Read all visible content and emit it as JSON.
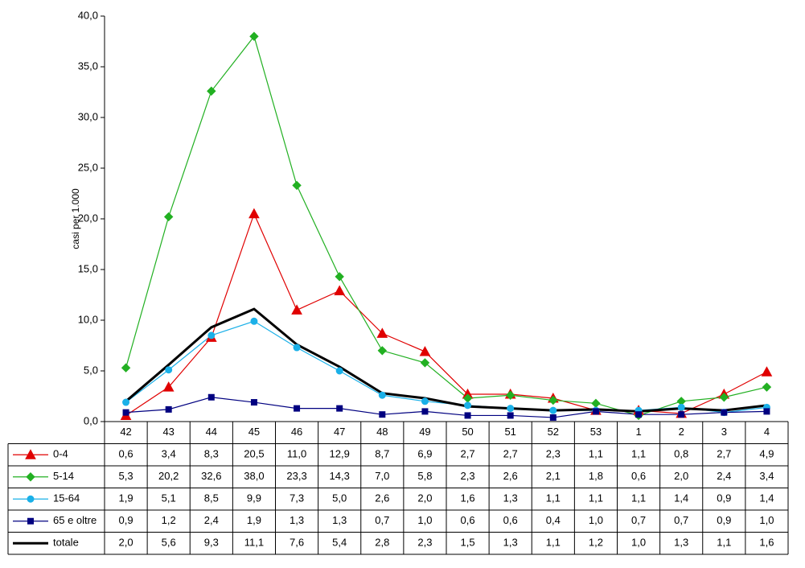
{
  "chart_data": {
    "type": "line",
    "y_label": "casi per 1.000",
    "categories": [
      "42",
      "43",
      "44",
      "45",
      "46",
      "47",
      "48",
      "49",
      "50",
      "51",
      "52",
      "53",
      "1",
      "2",
      "3",
      "4"
    ],
    "ylim": [
      0,
      40
    ],
    "yticks": [
      {
        "value": 0,
        "label": "0,0"
      },
      {
        "value": 5,
        "label": "5,0"
      },
      {
        "value": 10,
        "label": "10,0"
      },
      {
        "value": 15,
        "label": "15,0"
      },
      {
        "value": 20,
        "label": "20,0"
      },
      {
        "value": 25,
        "label": "25,0"
      },
      {
        "value": 30,
        "label": "30,0"
      },
      {
        "value": 35,
        "label": "35,0"
      },
      {
        "value": 40,
        "label": "40,0"
      }
    ],
    "series": [
      {
        "name": "0-4",
        "color": "#e00000",
        "marker": "triangle",
        "values": [
          0.6,
          3.4,
          8.3,
          20.5,
          11.0,
          12.9,
          8.7,
          6.9,
          2.7,
          2.7,
          2.3,
          1.1,
          1.1,
          0.8,
          2.7,
          4.9
        ],
        "value_labels": [
          "0,6",
          "3,4",
          "8,3",
          "20,5",
          "11,0",
          "12,9",
          "8,7",
          "6,9",
          "2,7",
          "2,7",
          "2,3",
          "1,1",
          "1,1",
          "0,8",
          "2,7",
          "4,9"
        ]
      },
      {
        "name": "5-14",
        "color": "#22b022",
        "marker": "diamond",
        "values": [
          5.3,
          20.2,
          32.6,
          38.0,
          23.3,
          14.3,
          7.0,
          5.8,
          2.3,
          2.6,
          2.1,
          1.8,
          0.6,
          2.0,
          2.4,
          3.4
        ],
        "value_labels": [
          "5,3",
          "20,2",
          "32,6",
          "38,0",
          "23,3",
          "14,3",
          "7,0",
          "5,8",
          "2,3",
          "2,6",
          "2,1",
          "1,8",
          "0,6",
          "2,0",
          "2,4",
          "3,4"
        ]
      },
      {
        "name": "15-64",
        "color": "#1ab0e8",
        "marker": "circle",
        "values": [
          1.9,
          5.1,
          8.5,
          9.9,
          7.3,
          5.0,
          2.6,
          2.0,
          1.6,
          1.3,
          1.1,
          1.1,
          1.1,
          1.4,
          0.9,
          1.4
        ],
        "value_labels": [
          "1,9",
          "5,1",
          "8,5",
          "9,9",
          "7,3",
          "5,0",
          "2,6",
          "2,0",
          "1,6",
          "1,3",
          "1,1",
          "1,1",
          "1,1",
          "1,4",
          "0,9",
          "1,4"
        ]
      },
      {
        "name": "65 e oltre",
        "color": "#000080",
        "marker": "square",
        "values": [
          0.9,
          1.2,
          2.4,
          1.9,
          1.3,
          1.3,
          0.7,
          1.0,
          0.6,
          0.6,
          0.4,
          1.0,
          0.7,
          0.7,
          0.9,
          1.0
        ],
        "value_labels": [
          "0,9",
          "1,2",
          "2,4",
          "1,9",
          "1,3",
          "1,3",
          "0,7",
          "1,0",
          "0,6",
          "0,6",
          "0,4",
          "1,0",
          "0,7",
          "0,7",
          "0,9",
          "1,0"
        ]
      },
      {
        "name": "totale",
        "color": "#000000",
        "marker": "none",
        "values": [
          2.0,
          5.6,
          9.3,
          11.1,
          7.6,
          5.4,
          2.8,
          2.3,
          1.5,
          1.3,
          1.1,
          1.2,
          1.0,
          1.3,
          1.1,
          1.6
        ],
        "value_labels": [
          "2,0",
          "5,6",
          "9,3",
          "11,1",
          "7,6",
          "5,4",
          "2,8",
          "2,3",
          "1,5",
          "1,3",
          "1,1",
          "1,2",
          "1,0",
          "1,3",
          "1,1",
          "1,6"
        ]
      }
    ]
  }
}
